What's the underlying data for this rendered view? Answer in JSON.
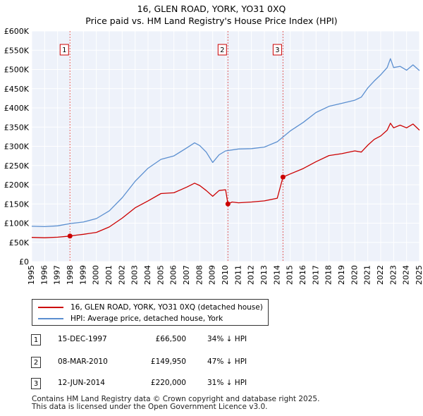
{
  "title": {
    "line1": "16, GLEN ROAD, YORK, YO31 0XQ",
    "line2": "Price paid vs. HM Land Registry's House Price Index (HPI)"
  },
  "colors": {
    "property": "#cc0000",
    "hpi": "#5b8fd0",
    "marker_line": "#e06060"
  },
  "chart_data": {
    "type": "line",
    "title": "Price paid vs. HM Land Registry's House Price Index (HPI)",
    "xlabel": "",
    "ylabel": "",
    "xlim": [
      1995,
      2025
    ],
    "ylim": [
      0,
      600000
    ],
    "y_ticks": [
      0,
      50000,
      100000,
      150000,
      200000,
      250000,
      300000,
      350000,
      400000,
      450000,
      500000,
      550000,
      600000
    ],
    "y_tick_labels": [
      "£0",
      "£50K",
      "£100K",
      "£150K",
      "£200K",
      "£250K",
      "£300K",
      "£350K",
      "£400K",
      "£450K",
      "£500K",
      "£550K",
      "£600K"
    ],
    "x_ticks": [
      1995,
      1996,
      1997,
      1998,
      1999,
      2000,
      2001,
      2002,
      2003,
      2004,
      2005,
      2006,
      2007,
      2008,
      2009,
      2010,
      2011,
      2012,
      2013,
      2014,
      2015,
      2016,
      2017,
      2018,
      2019,
      2020,
      2021,
      2022,
      2023,
      2024,
      2025
    ],
    "grid": true,
    "series": [
      {
        "name": "16, GLEN ROAD, YORK, YO31 0XQ (detached house)",
        "color": "#cc0000",
        "x": [
          1995.0,
          1996.0,
          1997.0,
          1997.96,
          1998.5,
          1999.0,
          2000.0,
          2001.0,
          2002.0,
          2003.0,
          2004.0,
          2005.0,
          2006.0,
          2007.0,
          2007.6,
          2008.0,
          2008.5,
          2009.0,
          2009.5,
          2010.0,
          2010.18,
          2010.5,
          2011.0,
          2012.0,
          2013.0,
          2014.0,
          2014.44,
          2015.0,
          2016.0,
          2017.0,
          2018.0,
          2019.0,
          2020.0,
          2020.5,
          2021.0,
          2021.5,
          2022.0,
          2022.5,
          2022.75,
          2023.0,
          2023.5,
          2024.0,
          2024.5,
          2025.0
        ],
        "y": [
          63000,
          62000,
          63500,
          66500,
          69000,
          71000,
          76000,
          90000,
          113000,
          140000,
          158000,
          177000,
          179000,
          194000,
          204000,
          198000,
          185000,
          170000,
          185000,
          187000,
          149950,
          155000,
          153000,
          155000,
          158000,
          165000,
          220000,
          228000,
          242000,
          260000,
          276000,
          281000,
          288000,
          285000,
          303000,
          318000,
          327000,
          342000,
          360000,
          348000,
          355000,
          348000,
          358000,
          342000
        ]
      },
      {
        "name": "HPI: Average price, detached house, York",
        "color": "#5b8fd0",
        "x": [
          1995.0,
          1996.0,
          1997.0,
          1998.0,
          1999.0,
          2000.0,
          2001.0,
          2002.0,
          2003.0,
          2004.0,
          2005.0,
          2006.0,
          2007.0,
          2007.6,
          2008.0,
          2008.5,
          2009.0,
          2009.5,
          2010.0,
          2011.0,
          2012.0,
          2013.0,
          2014.0,
          2015.0,
          2016.0,
          2017.0,
          2018.0,
          2019.0,
          2020.0,
          2020.5,
          2021.0,
          2021.5,
          2022.0,
          2022.5,
          2022.75,
          2023.0,
          2023.5,
          2024.0,
          2024.5,
          2025.0
        ],
        "y": [
          92000,
          91000,
          93000,
          99000,
          103000,
          112000,
          132000,
          166000,
          209000,
          243000,
          266000,
          275000,
          296000,
          309000,
          302000,
          285000,
          258000,
          278000,
          288000,
          293000,
          294000,
          298000,
          312000,
          340000,
          362000,
          388000,
          404000,
          412000,
          420000,
          428000,
          452000,
          470000,
          486000,
          505000,
          528000,
          505000,
          508000,
          498000,
          512000,
          497000
        ]
      }
    ],
    "sales": [
      {
        "label": "1",
        "x": 1997.96,
        "y": 66500
      },
      {
        "label": "2",
        "x": 2010.18,
        "y": 149950
      },
      {
        "label": "3",
        "x": 2014.44,
        "y": 220000
      }
    ]
  },
  "legend": {
    "property_label": "16, GLEN ROAD, YORK, YO31 0XQ (detached house)",
    "hpi_label": "HPI: Average price, detached house, York"
  },
  "sales_table": [
    {
      "num": "1",
      "date": "15-DEC-1997",
      "price": "£66,500",
      "hpi": "34% ↓ HPI"
    },
    {
      "num": "2",
      "date": "08-MAR-2010",
      "price": "£149,950",
      "hpi": "47% ↓ HPI"
    },
    {
      "num": "3",
      "date": "12-JUN-2014",
      "price": "£220,000",
      "hpi": "31% ↓ HPI"
    }
  ],
  "footer": {
    "line1": "Contains HM Land Registry data © Crown copyright and database right 2025.",
    "line2": "This data is licensed under the Open Government Licence v3.0."
  }
}
